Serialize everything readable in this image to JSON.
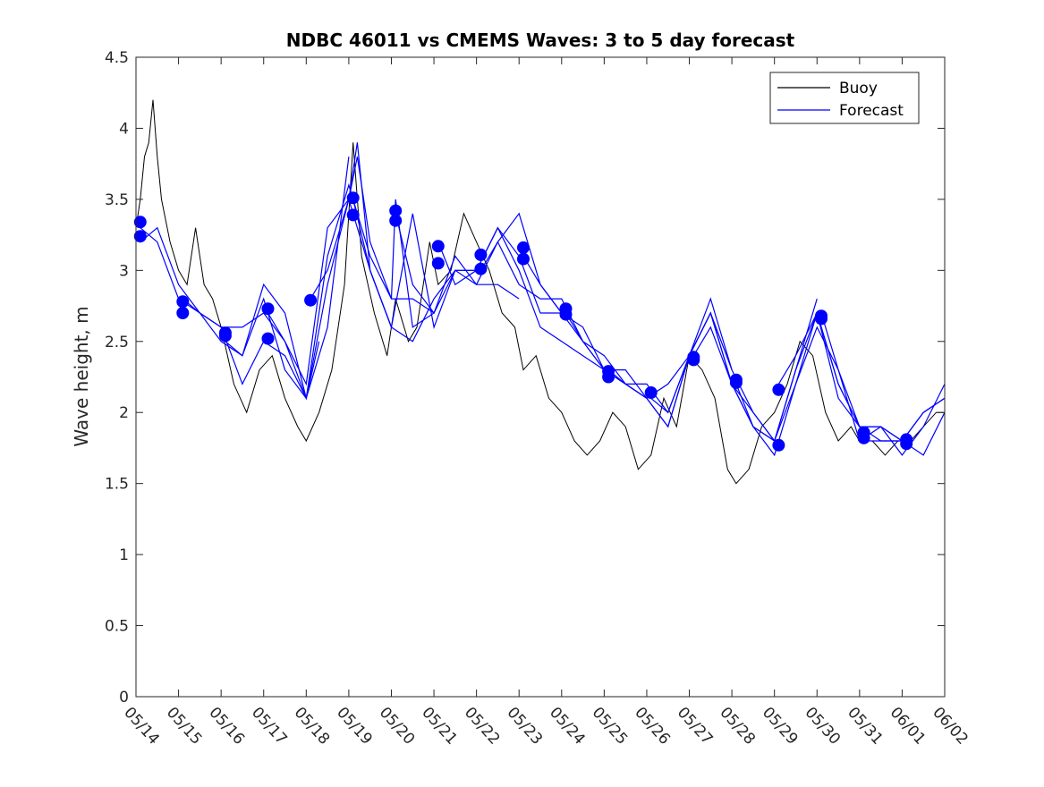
{
  "chart_data": {
    "type": "line",
    "title": "NDBC 46011 vs CMEMS Waves: 3 to 5 day forecast",
    "xlabel": "",
    "ylabel": "Wave height, m",
    "ylim": [
      0,
      4.5
    ],
    "xlim": [
      "05/14",
      "06/02"
    ],
    "yticks": [
      "0",
      "0.5",
      "1",
      "1.5",
      "2",
      "2.5",
      "3",
      "3.5",
      "4",
      "4.5"
    ],
    "xticks": [
      "05/14",
      "05/15",
      "05/16",
      "05/17",
      "05/18",
      "05/19",
      "05/20",
      "05/21",
      "05/22",
      "05/23",
      "05/24",
      "05/25",
      "05/26",
      "05/27",
      "05/28",
      "05/29",
      "05/30",
      "05/31",
      "06/01",
      "06/02"
    ],
    "grid": false,
    "legend": {
      "placement": "top-right",
      "entries": [
        "Buoy",
        "Forecast"
      ]
    },
    "colors": {
      "buoy": "#000000",
      "forecast": "#0000ff",
      "dots": "#0000ff"
    },
    "series": [
      {
        "name": "Buoy",
        "x_day": [
          0.0,
          0.1,
          0.2,
          0.3,
          0.4,
          0.5,
          0.6,
          0.8,
          1.0,
          1.2,
          1.4,
          1.6,
          1.8,
          2.0,
          2.3,
          2.6,
          2.9,
          3.2,
          3.5,
          3.8,
          4.0,
          4.3,
          4.6,
          4.9,
          5.1,
          5.3,
          5.6,
          5.9,
          6.1,
          6.4,
          6.6,
          6.9,
          7.1,
          7.4,
          7.7,
          8.0,
          8.3,
          8.6,
          8.9,
          9.1,
          9.4,
          9.7,
          10.0,
          10.3,
          10.6,
          10.9,
          11.2,
          11.5,
          11.8,
          12.1,
          12.4,
          12.7,
          13.0,
          13.3,
          13.6,
          13.9,
          14.1,
          14.4,
          14.7,
          15.0,
          15.3,
          15.6,
          15.9,
          16.2,
          16.5,
          16.8,
          17.0,
          17.3,
          17.6,
          17.9,
          18.2,
          18.5,
          18.8,
          19.0
        ],
        "values": [
          3.3,
          3.5,
          3.8,
          3.9,
          4.2,
          3.8,
          3.5,
          3.2,
          3.0,
          2.9,
          3.3,
          2.9,
          2.8,
          2.6,
          2.2,
          2.0,
          2.3,
          2.4,
          2.1,
          1.9,
          1.8,
          2.0,
          2.3,
          2.9,
          3.9,
          3.1,
          2.7,
          2.4,
          2.8,
          2.5,
          2.6,
          3.2,
          2.9,
          3.0,
          3.4,
          3.2,
          3.0,
          2.7,
          2.6,
          2.3,
          2.4,
          2.1,
          2.0,
          1.8,
          1.7,
          1.8,
          2.0,
          1.9,
          1.6,
          1.7,
          2.1,
          1.9,
          2.4,
          2.3,
          2.1,
          1.6,
          1.5,
          1.6,
          1.9,
          2.0,
          2.2,
          2.5,
          2.4,
          2.0,
          1.8,
          1.9,
          1.8,
          1.8,
          1.7,
          1.8,
          1.8,
          1.9,
          2.0,
          2.0
        ]
      },
      {
        "name": "Forecast",
        "runs": [
          {
            "x_day": [
              0.1,
              0.5,
              1.0,
              1.5,
              2.0,
              2.5,
              3.0,
              3.5,
              4.0,
              4.3
            ],
            "values": [
              3.3,
              3.2,
              2.8,
              2.7,
              2.5,
              2.4,
              2.8,
              2.3,
              2.1,
              2.5
            ]
          },
          {
            "x_day": [
              0.1,
              0.5,
              1.0,
              1.5,
              2.0,
              2.5,
              3.0,
              3.5,
              4.0,
              4.5,
              5.0
            ],
            "values": [
              3.2,
              3.3,
              2.9,
              2.7,
              2.6,
              2.2,
              2.5,
              2.4,
              2.1,
              2.6,
              3.8
            ]
          },
          {
            "x_day": [
              1.1,
              1.5,
              2.0,
              2.5,
              3.0,
              3.5,
              4.0,
              4.5,
              5.0,
              5.5,
              6.0
            ],
            "values": [
              2.8,
              2.7,
              2.6,
              2.6,
              2.7,
              2.5,
              2.1,
              2.9,
              3.5,
              3.0,
              2.6
            ]
          },
          {
            "x_day": [
              2.1,
              2.5,
              3.0,
              3.5,
              4.0,
              4.5,
              5.0,
              5.5,
              6.0,
              6.5,
              7.0
            ],
            "values": [
              2.5,
              2.4,
              2.9,
              2.7,
              2.1,
              3.1,
              3.6,
              3.1,
              2.8,
              2.8,
              2.7
            ]
          },
          {
            "x_day": [
              3.1,
              3.5,
              4.0,
              4.5,
              5.0,
              5.2,
              5.5,
              6.0,
              6.5,
              7.0,
              7.5,
              8.0
            ],
            "values": [
              2.7,
              2.5,
              2.2,
              3.3,
              3.5,
              3.9,
              3.0,
              2.6,
              3.4,
              2.6,
              3.0,
              3.0
            ]
          },
          {
            "x_day": [
              4.1,
              4.5,
              5.0,
              5.2,
              5.5,
              6.0,
              6.1,
              6.5,
              7.0,
              7.5,
              8.0,
              8.5,
              9.0
            ],
            "values": [
              2.8,
              3.0,
              3.5,
              3.8,
              3.2,
              2.8,
              3.5,
              2.6,
              2.7,
              3.1,
              2.9,
              2.9,
              2.8
            ]
          },
          {
            "x_day": [
              5.1,
              5.5,
              6.0,
              6.5,
              7.0,
              7.5,
              8.0,
              8.5,
              9.0,
              9.5,
              10.0
            ],
            "values": [
              3.5,
              3.0,
              2.6,
              2.5,
              2.8,
              3.0,
              2.9,
              3.2,
              3.4,
              2.9,
              2.7
            ]
          },
          {
            "x_day": [
              6.1,
              6.5,
              7.0,
              7.5,
              8.0,
              8.5,
              9.0,
              9.5,
              10.0,
              10.5,
              11.0
            ],
            "values": [
              3.4,
              2.9,
              2.7,
              3.0,
              3.0,
              3.3,
              3.0,
              2.6,
              2.5,
              2.4,
              2.3
            ]
          },
          {
            "x_day": [
              7.1,
              7.5,
              8.0,
              8.5,
              9.0,
              9.5,
              10.0,
              10.5,
              11.0,
              11.5,
              12.0
            ],
            "values": [
              3.2,
              2.9,
              3.0,
              3.3,
              3.1,
              2.7,
              2.7,
              2.6,
              2.3,
              2.3,
              2.1
            ]
          },
          {
            "x_day": [
              8.1,
              8.5,
              9.0,
              9.5,
              10.0,
              10.5,
              11.0,
              11.5,
              12.0,
              12.5,
              13.0
            ],
            "values": [
              3.0,
              3.2,
              2.9,
              2.8,
              2.8,
              2.5,
              2.4,
              2.2,
              2.1,
              2.2,
              2.4
            ]
          },
          {
            "x_day": [
              9.1,
              9.5,
              10.0,
              10.5,
              11.0,
              11.5,
              12.0,
              12.5,
              13.0,
              13.5,
              14.0
            ],
            "values": [
              3.1,
              2.9,
              2.7,
              2.5,
              2.3,
              2.2,
              2.2,
              2.0,
              2.4,
              2.7,
              2.3
            ]
          },
          {
            "x_day": [
              10.1,
              10.5,
              11.0,
              11.5,
              12.0,
              12.5,
              13.0,
              13.5,
              14.0,
              14.5,
              15.0
            ],
            "values": [
              2.7,
              2.5,
              2.3,
              2.2,
              2.1,
              1.9,
              2.4,
              2.8,
              2.3,
              2.0,
              1.8
            ]
          },
          {
            "x_day": [
              11.1,
              11.5,
              12.0,
              12.5,
              13.0,
              13.5,
              14.0,
              14.5,
              15.0,
              15.5,
              16.0
            ],
            "values": [
              2.3,
              2.2,
              2.1,
              1.9,
              2.4,
              2.7,
              2.2,
              2.0,
              1.8,
              2.3,
              2.8
            ]
          },
          {
            "x_day": [
              12.1,
              12.5,
              13.0,
              13.5,
              14.0,
              14.5,
              15.0,
              15.5,
              16.0,
              16.5,
              17.0
            ],
            "values": [
              2.1,
              2.0,
              2.4,
              2.7,
              2.2,
              1.9,
              1.8,
              2.3,
              2.7,
              2.1,
              1.9
            ]
          },
          {
            "x_day": [
              13.1,
              13.5,
              14.0,
              14.5,
              15.0,
              15.5,
              16.0,
              16.5,
              17.0,
              17.5,
              18.0
            ],
            "values": [
              2.4,
              2.6,
              2.2,
              1.9,
              1.8,
              2.2,
              2.7,
              2.2,
              1.9,
              1.8,
              1.8
            ]
          },
          {
            "x_day": [
              14.1,
              14.5,
              15.0,
              15.5,
              16.0,
              16.5,
              17.0,
              17.5,
              18.0,
              18.5,
              19.0
            ],
            "values": [
              2.2,
              1.9,
              1.7,
              2.2,
              2.6,
              2.3,
              1.9,
              1.9,
              1.8,
              1.7,
              2.0
            ]
          },
          {
            "x_day": [
              15.1,
              15.5,
              16.0,
              16.5,
              17.0,
              17.5,
              18.0,
              18.5,
              19.0
            ],
            "values": [
              2.2,
              2.4,
              2.7,
              2.2,
              1.9,
              1.9,
              1.8,
              2.0,
              2.1
            ]
          },
          {
            "x_day": [
              16.1,
              16.5,
              17.0,
              17.5,
              18.0,
              18.5,
              19.0
            ],
            "values": [
              2.7,
              2.3,
              1.8,
              1.9,
              1.7,
              1.9,
              2.2
            ]
          },
          {
            "x_day": [
              17.1,
              17.5,
              18.0,
              18.5,
              19.0
            ],
            "values": [
              1.8,
              1.8,
              1.8,
              2.0,
              2.1
            ]
          }
        ]
      }
    ],
    "dots": {
      "x_day": [
        0.1,
        0.1,
        1.1,
        1.1,
        2.1,
        2.1,
        3.1,
        3.1,
        4.1,
        5.1,
        5.1,
        6.1,
        6.1,
        7.1,
        7.1,
        8.1,
        8.1,
        9.1,
        9.1,
        10.1,
        10.1,
        11.1,
        11.1,
        12.1,
        13.1,
        13.1,
        14.1,
        14.1,
        15.1,
        15.1,
        16.1,
        16.1,
        17.1,
        17.1,
        18.1,
        18.1
      ],
      "values": [
        3.34,
        3.24,
        2.78,
        2.7,
        2.56,
        2.54,
        2.73,
        2.52,
        2.79,
        3.51,
        3.39,
        3.42,
        3.35,
        3.17,
        3.05,
        3.11,
        3.01,
        3.16,
        3.08,
        2.73,
        2.69,
        2.29,
        2.25,
        2.14,
        2.39,
        2.37,
        2.23,
        2.21,
        2.16,
        1.77,
        2.68,
        2.66,
        1.86,
        1.82,
        1.81,
        1.78
      ]
    }
  }
}
